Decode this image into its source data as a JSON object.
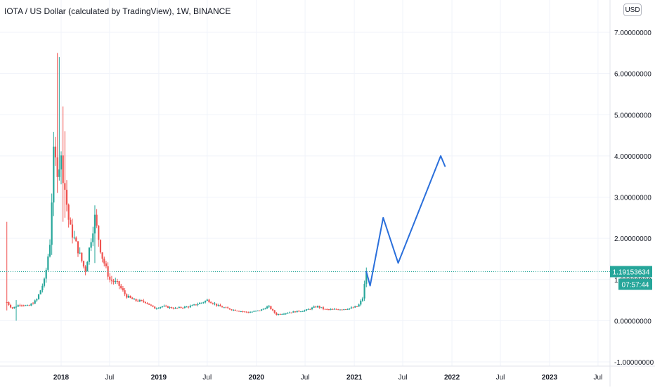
{
  "header": {
    "title": "IOTA / US Dollar (calculated by TradingView), 1W, BINANCE",
    "currency": "USD"
  },
  "colors": {
    "up": "#26a69a",
    "down": "#ef5350",
    "drawing": "#2a6fdb",
    "price_line": "#26a69a",
    "grid": "#f0f3fa",
    "axis_text": "#131722"
  },
  "price_badge": {
    "price": "1.19153634",
    "countdown": "07:57:44"
  },
  "chart_data": {
    "type": "candlestick",
    "title": "IOTA / US Dollar (calculated by TradingView), 1W, BINANCE",
    "xlabel": "",
    "ylabel": "",
    "ylim": [
      -1.0,
      7.0
    ],
    "y_ticks": [
      "7.00000000",
      "6.00000000",
      "5.00000000",
      "4.00000000",
      "3.00000000",
      "2.00000000",
      "1.00000000",
      "0.00000000",
      "-1.00000000"
    ],
    "x_ticks": [
      {
        "label": "2018",
        "date": "2018-01-01"
      },
      {
        "label": "Jul",
        "date": "2018-07-01"
      },
      {
        "label": "2019",
        "date": "2019-01-01"
      },
      {
        "label": "Jul",
        "date": "2019-07-01"
      },
      {
        "label": "2020",
        "date": "2020-01-01"
      },
      {
        "label": "Jul",
        "date": "2020-07-01"
      },
      {
        "label": "2021",
        "date": "2021-01-01"
      },
      {
        "label": "Jul",
        "date": "2021-07-01"
      },
      {
        "label": "2022",
        "date": "2022-01-01"
      },
      {
        "label": "Jul",
        "date": "2022-07-01"
      },
      {
        "label": "2023",
        "date": "2023-01-01"
      },
      {
        "label": "Jul",
        "date": "2023-07-01"
      }
    ],
    "bold_ticks": [
      "2018",
      "2019",
      "2020",
      "2021",
      "2022",
      "2023"
    ],
    "anchors": [
      [
        "2017-06-12",
        0.45
      ],
      [
        "2017-07-01",
        0.3
      ],
      [
        "2017-08-01",
        0.4
      ],
      [
        "2017-09-01",
        0.35
      ],
      [
        "2017-10-01",
        0.5
      ],
      [
        "2017-11-01",
        1.0
      ],
      [
        "2017-11-20",
        1.9
      ],
      [
        "2017-12-04",
        4.0
      ],
      [
        "2017-12-18",
        3.7
      ],
      [
        "2018-01-01",
        3.9
      ],
      [
        "2018-01-15",
        3.2
      ],
      [
        "2018-02-01",
        2.3
      ],
      [
        "2018-03-01",
        1.8
      ],
      [
        "2018-04-01",
        1.2
      ],
      [
        "2018-04-23",
        2.0
      ],
      [
        "2018-05-07",
        2.5
      ],
      [
        "2018-06-01",
        1.6
      ],
      [
        "2018-07-01",
        1.0
      ],
      [
        "2018-08-01",
        0.9
      ],
      [
        "2018-09-01",
        0.6
      ],
      [
        "2018-10-01",
        0.5
      ],
      [
        "2018-11-15",
        0.45
      ],
      [
        "2018-12-15",
        0.3
      ],
      [
        "2019-01-15",
        0.35
      ],
      [
        "2019-03-01",
        0.3
      ],
      [
        "2019-05-01",
        0.35
      ],
      [
        "2019-06-15",
        0.45
      ],
      [
        "2019-07-01",
        0.5
      ],
      [
        "2019-08-15",
        0.35
      ],
      [
        "2019-10-01",
        0.27
      ],
      [
        "2019-12-01",
        0.2
      ],
      [
        "2020-01-15",
        0.25
      ],
      [
        "2020-02-15",
        0.35
      ],
      [
        "2020-03-15",
        0.15
      ],
      [
        "2020-05-01",
        0.2
      ],
      [
        "2020-07-01",
        0.25
      ],
      [
        "2020-08-15",
        0.35
      ],
      [
        "2020-09-15",
        0.27
      ],
      [
        "2020-11-15",
        0.28
      ],
      [
        "2020-12-15",
        0.3
      ],
      [
        "2021-01-15",
        0.35
      ],
      [
        "2021-02-01",
        0.55
      ],
      [
        "2021-02-15",
        1.19
      ]
    ],
    "spikes": [
      {
        "date": "2017-06-12",
        "high": 2.4,
        "low": 0.25
      },
      {
        "date": "2017-07-17",
        "high": 0.5,
        "low": 0.0
      },
      {
        "date": "2017-12-18",
        "high": 6.5,
        "low": 3.1
      },
      {
        "date": "2017-12-25",
        "high": 6.4,
        "low": 3.4
      },
      {
        "date": "2018-01-08",
        "high": 5.2,
        "low": 2.4
      },
      {
        "date": "2018-01-15",
        "high": 4.6,
        "low": 2.5
      },
      {
        "date": "2018-05-07",
        "high": 2.8,
        "low": 1.4
      }
    ],
    "current_price": 1.19153634,
    "projection": [
      [
        "2021-02-15",
        1.19
      ],
      [
        "2021-03-01",
        0.85
      ],
      [
        "2021-04-19",
        2.5
      ],
      [
        "2021-06-14",
        1.4
      ],
      [
        "2021-11-20",
        4.0
      ],
      [
        "2021-12-06",
        3.75
      ]
    ]
  }
}
